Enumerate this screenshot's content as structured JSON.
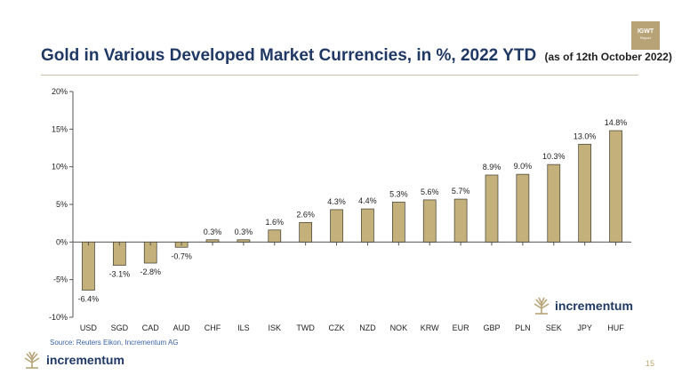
{
  "slide": {
    "title": "Gold in Various Developed Market Currencies, in %, 2022 YTD",
    "subtitle": "(as of 12th October 2022)",
    "source": "Source: Reuters Eikon, Incrementum AG",
    "brand_name": "incrementum",
    "badge_line1": "IGWT",
    "badge_line2": "Report",
    "page_number": "15",
    "colors": {
      "title": "#1f3864",
      "bar": "#c4b07a",
      "bar_stroke": "#3d3a30",
      "accent": "#b8a376"
    }
  },
  "chart_data": {
    "type": "bar",
    "categories": [
      "USD",
      "SGD",
      "CAD",
      "AUD",
      "CHF",
      "ILS",
      "ISK",
      "TWD",
      "CZK",
      "NZD",
      "NOK",
      "KRW",
      "EUR",
      "GBP",
      "PLN",
      "SEK",
      "JPY",
      "HUF"
    ],
    "values": [
      -6.4,
      -3.1,
      -2.8,
      -0.7,
      0.3,
      0.3,
      1.6,
      2.6,
      4.3,
      4.4,
      5.3,
      5.6,
      5.7,
      8.9,
      9.0,
      10.3,
      13.0,
      14.8
    ],
    "data_labels": [
      "-6.4%",
      "-3.1%",
      "-2.8%",
      "-0.7%",
      "0.3%",
      "0.3%",
      "1.6%",
      "2.6%",
      "4.3%",
      "4.4%",
      "5.3%",
      "5.6%",
      "5.7%",
      "8.9%",
      "9.0%",
      "10.3%",
      "13.0%",
      "14.8%"
    ],
    "ylim": [
      -10,
      20
    ],
    "yticks": [
      -10,
      -5,
      0,
      5,
      10,
      15,
      20
    ],
    "ytick_labels": [
      "-10%",
      "-5%",
      "0%",
      "5%",
      "10%",
      "15%",
      "20%"
    ],
    "grid": false,
    "legend": "none"
  }
}
